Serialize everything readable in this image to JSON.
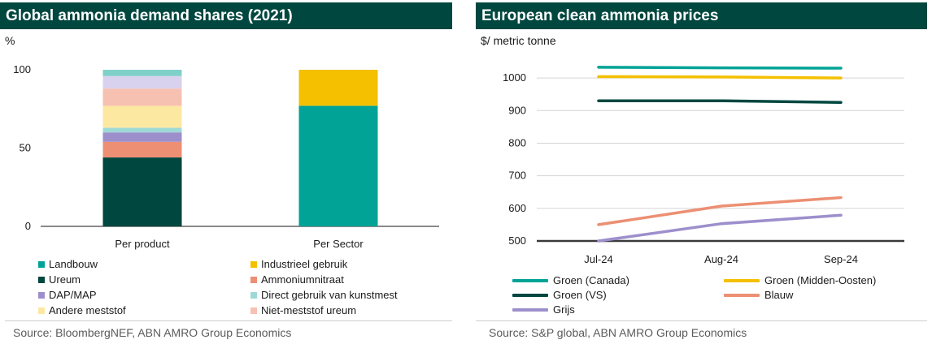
{
  "left": {
    "title": "Global ammonia demand shares (2021)",
    "unit": "%",
    "source": "Source: BloombergNEF, ABN AMRO Group Economics"
  },
  "right": {
    "title": "European clean ammonia prices",
    "unit": "$/ metric tonne",
    "source": "Source: S&P global, ABN AMRO Group Economics"
  },
  "chart_data": [
    {
      "type": "bar",
      "stacked": true,
      "title": "Global ammonia demand shares (2021)",
      "ylabel": "%",
      "ylim": [
        0,
        100
      ],
      "yticks": [
        "0",
        "50",
        "100"
      ],
      "categories": [
        "Per product",
        "Per Sector"
      ],
      "series": [
        {
          "name": "Ureum",
          "color": "#00473f",
          "values": [
            44,
            0
          ]
        },
        {
          "name": "Ammoniumnitraat",
          "color": "#ec8f73",
          "values": [
            10,
            0
          ]
        },
        {
          "name": "DAP/MAP",
          "color": "#9d8fcc",
          "values": [
            6,
            0
          ]
        },
        {
          "name": "Direct gebruik van kunstmest",
          "color": "#9fd9d6",
          "values": [
            3,
            0
          ]
        },
        {
          "name": "Andere meststof",
          "color": "#fde8a2",
          "values": [
            14,
            0
          ]
        },
        {
          "name": "Niet-meststof ureum",
          "color": "#f7c1b2",
          "values": [
            11,
            0
          ]
        },
        {
          "name": "Landbouw",
          "color": "#00a396",
          "values": [
            0,
            77
          ]
        },
        {
          "name": "Industrieel gebruik",
          "color": "#f4c000",
          "values": [
            0,
            23
          ]
        }
      ],
      "extra_segments": [
        {
          "category": "Per product",
          "color": "#d9d2ee",
          "value": 8
        },
        {
          "category": "Per product",
          "color": "#7fd0c9",
          "value": 4
        }
      ],
      "legend": [
        {
          "name": "Landbouw",
          "color": "#00a396"
        },
        {
          "name": "Industrieel gebruik",
          "color": "#f4c000"
        },
        {
          "name": "Ureum",
          "color": "#00473f"
        },
        {
          "name": "Ammoniumnitraat",
          "color": "#ec8f73"
        },
        {
          "name": "DAP/MAP",
          "color": "#9d8fcc"
        },
        {
          "name": "Direct gebruik van kunstmest",
          "color": "#9fd9d6"
        },
        {
          "name": "Andere meststof",
          "color": "#fde8a2"
        },
        {
          "name": "Niet-meststof ureum",
          "color": "#f7c1b2"
        }
      ],
      "legend_position": "bottom"
    },
    {
      "type": "line",
      "title": "European clean ammonia prices",
      "ylabel": "$/ metric tonne",
      "ylim": [
        500,
        1050
      ],
      "yticks": [
        "500",
        "600",
        "700",
        "800",
        "900",
        "1000"
      ],
      "categories": [
        "Jul-24",
        "Aug-24",
        "Sep-24"
      ],
      "grid": true,
      "series": [
        {
          "name": "Groen (Canada)",
          "color": "#00a396",
          "values": [
            1033,
            1031,
            1030
          ]
        },
        {
          "name": "Groen (Midden-Oosten)",
          "color": "#f4c000",
          "values": [
            1004,
            1003,
            1000
          ]
        },
        {
          "name": "Groen (VS)",
          "color": "#00473f",
          "values": [
            930,
            930,
            925
          ]
        },
        {
          "name": "Blauw",
          "color": "#ec8f73",
          "values": [
            550,
            607,
            633
          ]
        },
        {
          "name": "Grijs",
          "color": "#9d8fcc",
          "values": [
            500,
            553,
            579
          ]
        }
      ],
      "legend_position": "bottom"
    }
  ]
}
